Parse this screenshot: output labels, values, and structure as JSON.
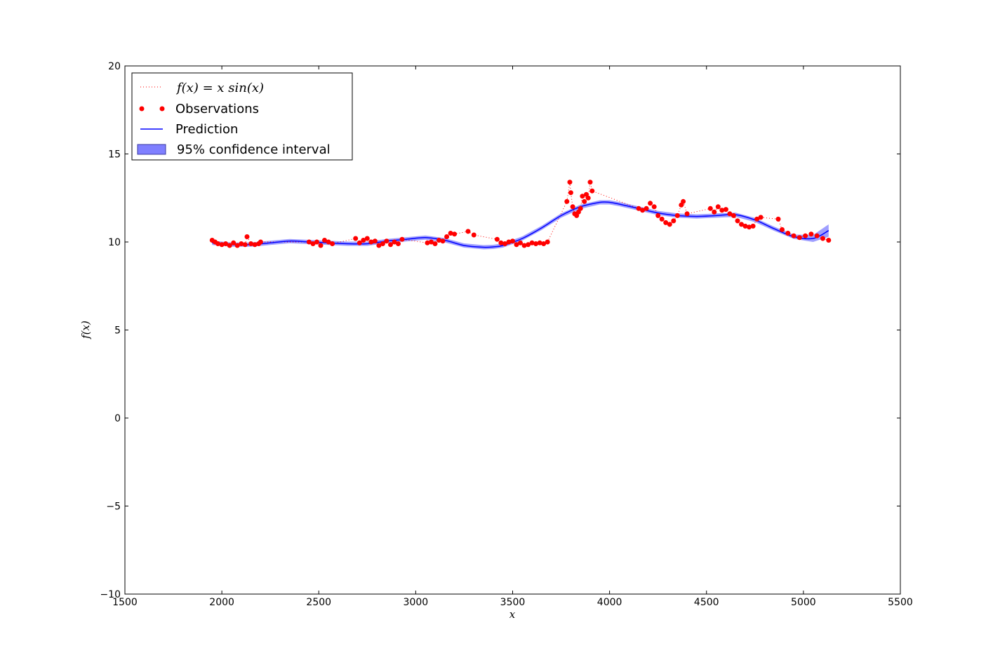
{
  "chart_data": {
    "type": "line",
    "title": "",
    "xlabel": "x",
    "ylabel": "f(x)",
    "xlim": [
      1500,
      5500
    ],
    "ylim": [
      -10,
      20
    ],
    "xticks": [
      "1500",
      "2000",
      "2500",
      "3000",
      "3500",
      "4000",
      "4500",
      "5000",
      "5500"
    ],
    "yticks": [
      "−10",
      "−5",
      "0",
      "5",
      "10",
      "15",
      "20"
    ],
    "grid": false,
    "legend_position": "top-left",
    "legend": [
      {
        "label": "f(x) = x sin(x)",
        "style": "dotted red line"
      },
      {
        "label": "Observations",
        "style": "red dots"
      },
      {
        "label": "Prediction",
        "style": "blue line"
      },
      {
        "label": "95% confidence interval",
        "style": "blue shaded band"
      }
    ],
    "colors": {
      "observations": "#ff0000",
      "prediction": "#0000ff",
      "confidence": "#7f7fff"
    },
    "series": [
      {
        "name": "Observations",
        "kind": "scatter",
        "x": [
          1950,
          1965,
          1980,
          2000,
          2020,
          2040,
          2060,
          2080,
          2100,
          2120,
          2130,
          2150,
          2170,
          2190,
          2200,
          2450,
          2470,
          2490,
          2510,
          2530,
          2550,
          2570,
          2690,
          2710,
          2730,
          2750,
          2770,
          2790,
          2810,
          2830,
          2850,
          2870,
          2890,
          2910,
          2930,
          3060,
          3080,
          3100,
          3120,
          3140,
          3160,
          3180,
          3200,
          3270,
          3300,
          3420,
          3440,
          3460,
          3480,
          3500,
          3520,
          3540,
          3560,
          3580,
          3600,
          3620,
          3640,
          3660,
          3680,
          3780,
          3795,
          3800,
          3810,
          3820,
          3830,
          3840,
          3850,
          3860,
          3870,
          3880,
          3890,
          3900,
          3910,
          4150,
          4170,
          4190,
          4210,
          4230,
          4250,
          4270,
          4290,
          4310,
          4330,
          4350,
          4370,
          4380,
          4400,
          4520,
          4540,
          4560,
          4580,
          4600,
          4620,
          4640,
          4660,
          4680,
          4700,
          4720,
          4740,
          4760,
          4780,
          4870,
          4890,
          4920,
          4950,
          4980,
          5010,
          5040,
          5070,
          5100,
          5130
        ],
        "y": [
          10.1,
          10.0,
          9.9,
          9.85,
          9.9,
          9.8,
          9.95,
          9.8,
          9.9,
          9.85,
          10.3,
          9.9,
          9.85,
          9.9,
          10.0,
          10.0,
          9.9,
          10.0,
          9.8,
          10.1,
          10.0,
          9.9,
          10.2,
          9.95,
          10.1,
          10.2,
          10.0,
          10.05,
          9.8,
          9.9,
          10.05,
          9.85,
          10.0,
          9.9,
          10.15,
          9.95,
          10.0,
          9.9,
          10.1,
          10.05,
          10.3,
          10.5,
          10.45,
          10.6,
          10.4,
          10.15,
          9.95,
          9.9,
          10.0,
          10.05,
          9.85,
          9.95,
          9.8,
          9.85,
          9.95,
          9.9,
          9.95,
          9.9,
          10.0,
          12.3,
          13.4,
          12.8,
          12.0,
          11.6,
          11.5,
          11.7,
          11.9,
          12.6,
          12.3,
          12.7,
          12.5,
          13.4,
          12.9,
          11.9,
          11.8,
          11.9,
          12.2,
          12.0,
          11.5,
          11.3,
          11.1,
          11.0,
          11.2,
          11.5,
          12.1,
          12.3,
          11.6,
          11.9,
          11.7,
          12.0,
          11.8,
          11.85,
          11.6,
          11.5,
          11.2,
          11.0,
          10.9,
          10.85,
          10.9,
          11.3,
          11.4,
          11.3,
          10.7,
          10.5,
          10.35,
          10.25,
          10.35,
          10.45,
          10.35,
          10.2,
          10.1
        ]
      },
      {
        "name": "Prediction",
        "kind": "line",
        "x": [
          1950,
          2050,
          2150,
          2250,
          2350,
          2450,
          2550,
          2650,
          2750,
          2850,
          2950,
          3050,
          3150,
          3250,
          3350,
          3400,
          3450,
          3550,
          3650,
          3750,
          3850,
          3950,
          4000,
          4050,
          4150,
          4250,
          4350,
          4450,
          4550,
          4650,
          4750,
          4850,
          4950,
          5050,
          5130
        ],
        "y": [
          9.95,
          9.85,
          9.85,
          9.95,
          10.05,
          10.0,
          9.95,
          9.9,
          9.9,
          10.05,
          10.15,
          10.25,
          10.1,
          9.8,
          9.7,
          9.72,
          9.8,
          10.2,
          10.8,
          11.5,
          12.0,
          12.25,
          12.25,
          12.15,
          11.9,
          11.65,
          11.5,
          11.45,
          11.5,
          11.55,
          11.25,
          10.75,
          10.3,
          10.2,
          10.65
        ]
      }
    ],
    "confidence_halfwidth": [
      0.12,
      0.12,
      0.12,
      0.12,
      0.12,
      0.12,
      0.12,
      0.12,
      0.12,
      0.12,
      0.12,
      0.12,
      0.12,
      0.12,
      0.12,
      0.12,
      0.12,
      0.12,
      0.12,
      0.12,
      0.12,
      0.12,
      0.12,
      0.12,
      0.12,
      0.12,
      0.12,
      0.12,
      0.12,
      0.12,
      0.12,
      0.12,
      0.12,
      0.2,
      0.35
    ]
  }
}
